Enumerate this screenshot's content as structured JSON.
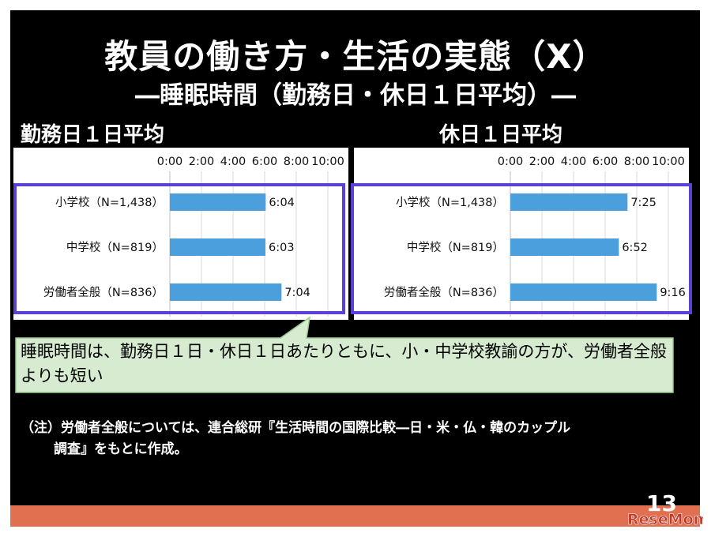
{
  "slide": {
    "title": "教員の働き方・生活の実態（X）",
    "subtitle": "―睡眠時間（勤務日・休日１日平均）―",
    "callout": "睡眠時間は、勤務日１日・休日１日あたりともに、小・中学校教諭の方が、労働者全般よりも短い",
    "note_line1": "（注）労働者全般については、連合総研『生活時間の国際比較―日・米・仏・韓のカップル",
    "note_line2": "調査』をもとに作成。",
    "page_number": "13",
    "logo_text": "ReseMom",
    "colors": {
      "bar": "#4a9fdc",
      "frame": "#5b3fd6",
      "callout_bg": "#d6ebcf",
      "bottom_bar": "#e0704f"
    }
  },
  "chart_data": [
    {
      "type": "bar",
      "orientation": "horizontal",
      "title": "勤務日１日平均",
      "x_ticks": [
        "0:00",
        "2:00",
        "4:00",
        "6:00",
        "8:00",
        "10:00"
      ],
      "xlim": [
        0,
        10
      ],
      "categories": [
        "小学校（N=1,438）",
        "中学校（N=819）",
        "労働者全般（N=836）"
      ],
      "values": [
        6.0667,
        6.05,
        7.0667
      ],
      "value_labels": [
        "6:04",
        "6:03",
        "7:04"
      ]
    },
    {
      "type": "bar",
      "orientation": "horizontal",
      "title": "休日１日平均",
      "x_ticks": [
        "0:00",
        "2:00",
        "4:00",
        "6:00",
        "8:00",
        "10:00"
      ],
      "xlim": [
        0,
        10
      ],
      "categories": [
        "小学校（N=1,438）",
        "中学校（N=819）",
        "労働者全般（N=836）"
      ],
      "values": [
        7.4167,
        6.8667,
        9.2667
      ],
      "value_labels": [
        "7:25",
        "6:52",
        "9:16"
      ]
    }
  ]
}
